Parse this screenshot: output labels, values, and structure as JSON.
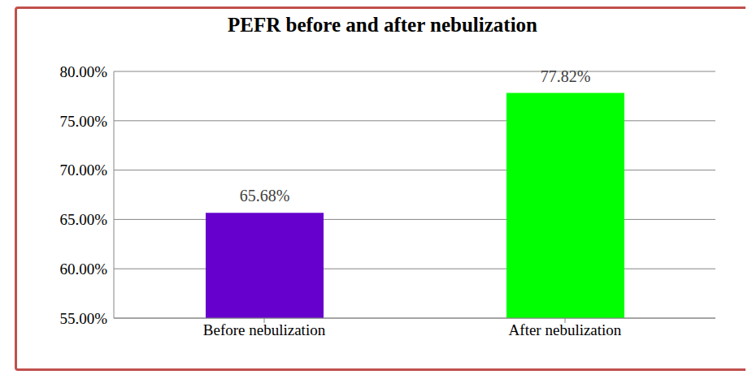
{
  "chart_data": {
    "type": "bar",
    "title": "PEFR before and after nebulization",
    "categories": [
      "Before nebulization",
      "After nebulization"
    ],
    "values": [
      65.68,
      77.82
    ],
    "value_labels": [
      "65.68%",
      "77.82%"
    ],
    "colors": [
      "#6600cc",
      "#00ff00"
    ],
    "ylim": [
      55,
      80
    ],
    "yticks": [
      {
        "value": 55,
        "label": "55.00%"
      },
      {
        "value": 60,
        "label": "60.00%"
      },
      {
        "value": 65,
        "label": "65.00%"
      },
      {
        "value": 70,
        "label": "70.00%"
      },
      {
        "value": 75,
        "label": "75.00%"
      },
      {
        "value": 80,
        "label": "80.00%"
      }
    ],
    "grid": true,
    "data_labels": true
  }
}
